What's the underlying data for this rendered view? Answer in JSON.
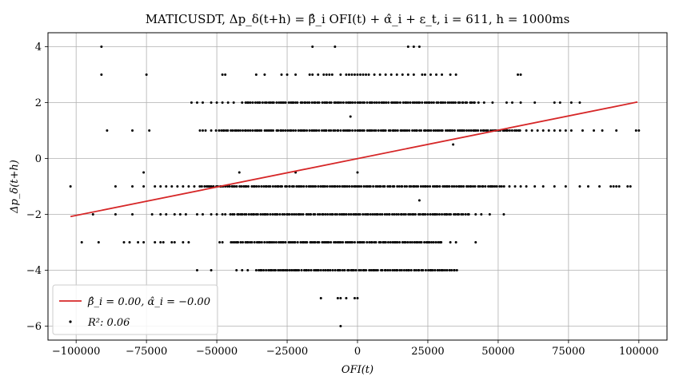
{
  "chart_data": {
    "type": "scatter",
    "title": "MATICUSDT, Δp_δ(t+h) = β̂_i OFI(t) + α̂_i + ε_t,  i = 611, h = 1000ms",
    "xlabel": "OFI(t)",
    "ylabel": "Δp_δ(t+h)",
    "xlim": [
      -110000,
      110000
    ],
    "ylim": [
      -6.5,
      4.5
    ],
    "grid": true,
    "legend_position": "lower-left",
    "xticks": [
      -100000,
      -75000,
      -50000,
      -25000,
      0,
      25000,
      50000,
      75000,
      100000
    ],
    "xtick_labels": [
      "−100000",
      "−75000",
      "−50000",
      "−25000",
      "0",
      "25000",
      "50000",
      "75000",
      "100000"
    ],
    "yticks": [
      -6,
      -4,
      -2,
      0,
      2,
      4
    ],
    "ytick_labels": [
      "−6",
      "−4",
      "−2",
      "0",
      "2",
      "4"
    ],
    "series": [
      {
        "name": "β̂_i = 0.00,  α̂_i = −0.00",
        "type": "line",
        "color": "#d62728",
        "x": [
          -102000,
          99500
        ],
        "y": [
          -2.08,
          2.02
        ]
      },
      {
        "name": "R²: 0.06",
        "type": "scatter",
        "color": "#000000",
        "segments": [
          {
            "y": 4,
            "x": [
              -91000,
              -16000,
              -8000,
              18000,
              20000,
              22000
            ]
          },
          {
            "y": 3,
            "x": [
              -91000,
              -75000,
              -48000,
              -47000,
              -36000,
              -33000,
              -27000,
              -25000,
              -22000,
              -17000,
              -16000,
              -14000,
              -12000,
              -11000,
              -10000,
              -9000,
              -6000,
              -4000,
              -3000,
              -2000,
              -1000,
              0,
              1000,
              2000,
              3000,
              4000,
              6000,
              8000,
              10000,
              12000,
              14000,
              16000,
              18000,
              20000,
              23000,
              24000,
              26000,
              28000,
              30000,
              33000,
              35000,
              57000,
              58000
            ]
          },
          {
            "y": 1.5,
            "x": [
              -2500
            ]
          },
          {
            "y": 0.5,
            "x": [
              34000
            ]
          },
          {
            "y": -0.5,
            "x": [
              -76000,
              -42000,
              -22000,
              0
            ]
          },
          {
            "y": -1.5,
            "x": [
              22000
            ]
          },
          {
            "y": -5,
            "x": [
              -13000,
              -7000,
              -6000,
              -4000,
              -1000,
              0
            ]
          },
          {
            "y": -6,
            "x": [
              -6000
            ]
          }
        ],
        "bands": [
          {
            "y": 2,
            "dense": [
              -40000,
              42000
            ],
            "sparse": [
              -59000,
              -57000,
              -55000,
              -52000,
              -50000,
              -48000,
              -46000,
              -44000,
              -41000,
              43000,
              45000,
              48000,
              53000,
              55000,
              58000,
              63000,
              70000,
              72000,
              76000,
              79000
            ]
          },
          {
            "y": 1,
            "dense": [
              -50000,
              58000
            ],
            "sparse": [
              -89000,
              -80000,
              -74000,
              -56000,
              -55000,
              -54000,
              -52000,
              60000,
              62000,
              64000,
              66000,
              68000,
              70000,
              72000,
              74000,
              76000,
              80000,
              84000,
              87000,
              92000,
              99000,
              100000
            ]
          },
          {
            "y": -1,
            "dense": [
              -56000,
              52000
            ],
            "sparse": [
              -102000,
              -86000,
              -80000,
              -76000,
              -72000,
              -70000,
              -68000,
              -66000,
              -64000,
              -62000,
              -60000,
              -58000,
              54000,
              56000,
              58000,
              60000,
              63000,
              66000,
              70000,
              74000,
              79000,
              82000,
              86000,
              90000,
              91000,
              92000,
              93000,
              96000,
              97000
            ]
          },
          {
            "y": -2,
            "dense": [
              -45000,
              40000
            ],
            "sparse": [
              -94000,
              -86000,
              -80000,
              -73000,
              -70000,
              -68000,
              -65000,
              -63000,
              -61000,
              -57000,
              -55000,
              -52000,
              -50000,
              -48000,
              -47000,
              42000,
              44000,
              47000,
              52000
            ]
          },
          {
            "y": -3,
            "dense": [
              -45000,
              30000
            ],
            "sparse": [
              -98000,
              -92000,
              -83000,
              -81000,
              -78000,
              -76000,
              -72000,
              -70000,
              -69000,
              -66000,
              -65000,
              -62000,
              -60000,
              -49000,
              -48000,
              33000,
              35000,
              42000
            ]
          },
          {
            "y": -4,
            "dense": [
              -36000,
              36000
            ],
            "sparse": [
              -57000,
              -52000,
              -43000,
              -41000,
              -39000
            ]
          }
        ]
      }
    ]
  }
}
